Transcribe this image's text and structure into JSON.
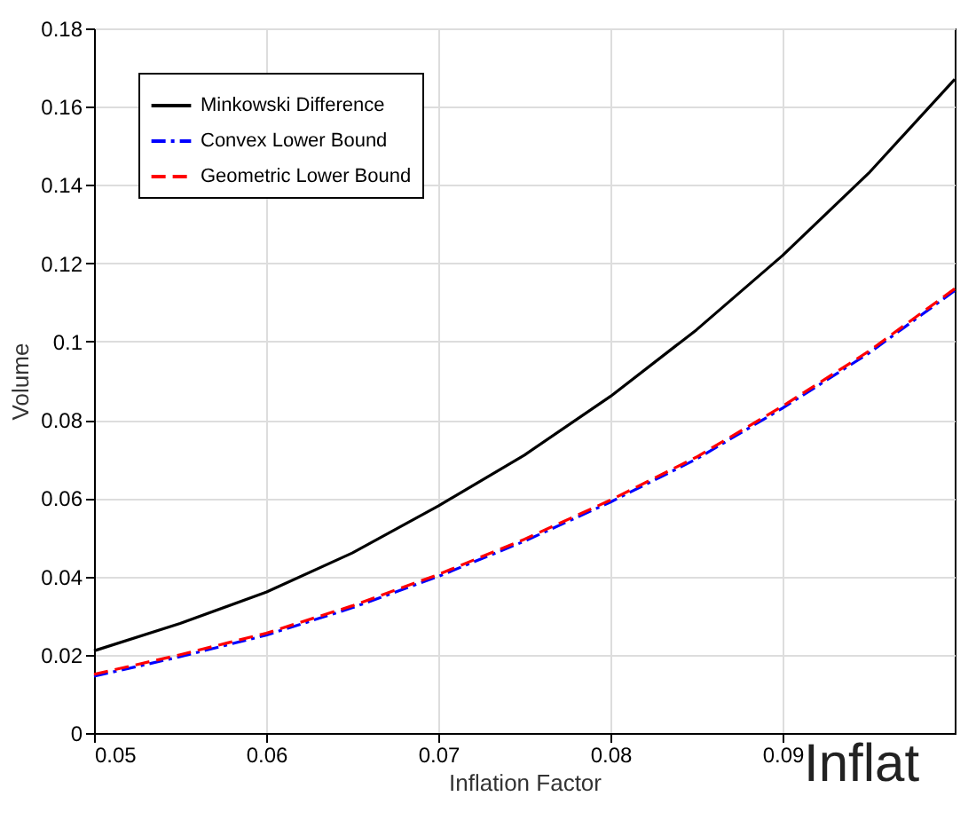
{
  "chart_data": {
    "type": "line",
    "xlabel": "Inflation Factor",
    "ylabel": "Volume",
    "x": [
      0.05,
      0.055,
      0.06,
      0.065,
      0.07,
      0.075,
      0.08,
      0.085,
      0.09,
      0.095,
      0.1
    ],
    "series": [
      {
        "name": "Minkowski Difference",
        "color": "#000000",
        "line_style": "solid",
        "values": [
          0.021,
          0.028,
          0.036,
          0.046,
          0.058,
          0.071,
          0.086,
          0.103,
          0.122,
          0.143,
          0.167
        ]
      },
      {
        "name": "Convex Lower Bound",
        "color": "#0000ff",
        "line_style": "dashdot",
        "values": [
          0.0145,
          0.0195,
          0.025,
          0.032,
          0.04,
          0.049,
          0.059,
          0.07,
          0.083,
          0.097,
          0.113
        ]
      },
      {
        "name": "Geometric Lower Bound",
        "color": "#ff0000",
        "line_style": "dashed",
        "values": [
          0.015,
          0.02,
          0.0255,
          0.0325,
          0.0405,
          0.0495,
          0.0595,
          0.0705,
          0.0835,
          0.0975,
          0.1135
        ]
      }
    ],
    "xlim": [
      0.05,
      0.1
    ],
    "xticks": [
      0.05,
      0.06,
      0.07,
      0.08,
      0.09
    ],
    "ylim": [
      0,
      0.18
    ],
    "yticks": [
      0,
      0.02,
      0.04,
      0.06,
      0.08,
      0.1,
      0.12,
      0.14,
      0.16,
      0.18
    ],
    "grid": true,
    "legend": "top left",
    "annotations": [
      "Inflat"
    ]
  }
}
